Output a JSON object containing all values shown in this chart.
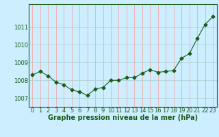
{
  "x": [
    0,
    1,
    2,
    3,
    4,
    5,
    6,
    7,
    8,
    9,
    10,
    11,
    12,
    13,
    14,
    15,
    16,
    17,
    18,
    19,
    20,
    21,
    22,
    23
  ],
  "y": [
    1008.3,
    1008.5,
    1008.25,
    1007.9,
    1007.75,
    1007.45,
    1007.35,
    1007.15,
    1007.5,
    1007.6,
    1008.0,
    1008.0,
    1008.15,
    1008.15,
    1008.4,
    1008.6,
    1008.45,
    1008.5,
    1008.55,
    1009.25,
    1009.5,
    1010.35,
    1011.15,
    1011.6
  ],
  "line_color": "#1a5c1a",
  "marker": "D",
  "marker_size": 2.5,
  "bg_color": "#cceeff",
  "vgrid_color": "#ff9999",
  "hgrid_color": "#aacccc",
  "xlabel": "Graphe pression niveau de la mer (hPa)",
  "xlabel_fontsize": 7,
  "tick_fontsize": 6,
  "yticks": [
    1007,
    1008,
    1009,
    1010,
    1011
  ],
  "ylim": [
    1006.5,
    1012.3
  ],
  "xlim": [
    -0.5,
    23.5
  ],
  "xtick_labels": [
    "0",
    "1",
    "2",
    "3",
    "4",
    "5",
    "6",
    "7",
    "8",
    "9",
    "10",
    "11",
    "12",
    "13",
    "14",
    "15",
    "16",
    "17",
    "18",
    "19",
    "20",
    "21",
    "22",
    "23"
  ]
}
